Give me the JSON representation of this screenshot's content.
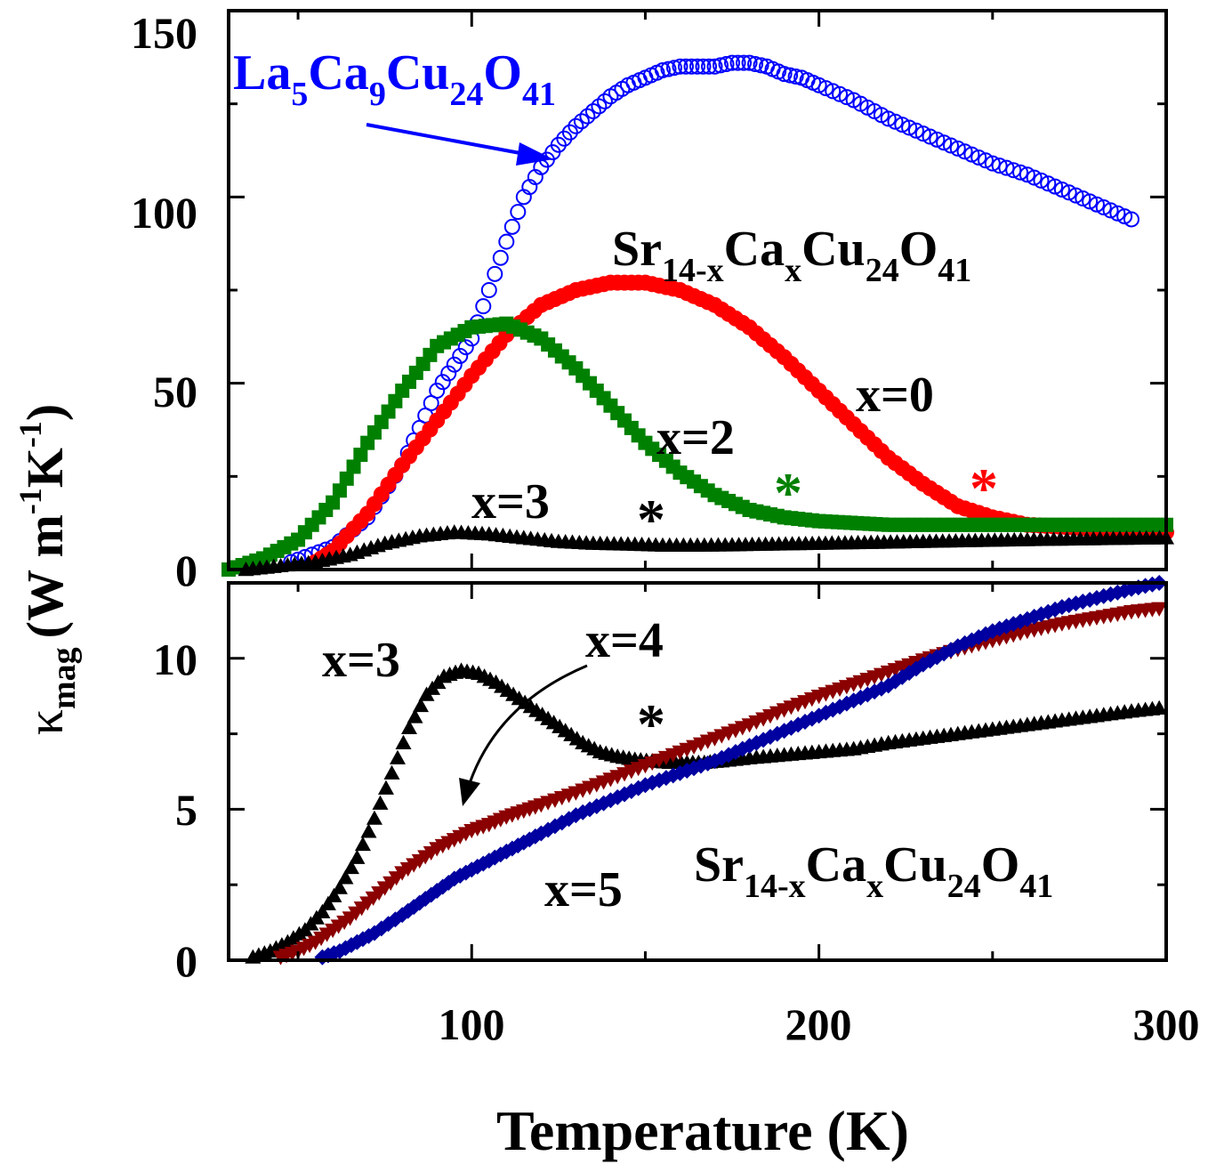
{
  "chart_data": [
    {
      "type": "scatter",
      "panel": "top",
      "xlim": [
        30,
        300
      ],
      "ylim": [
        0,
        150
      ],
      "yticks": [
        "0",
        "50",
        "100",
        "150"
      ],
      "ylabel": "κ_mag (W m⁻¹K⁻¹)",
      "formula": "Sr14-xCaxCu24O41",
      "series": [
        {
          "name": "La5Ca9Cu24O41",
          "color": "#0000ff",
          "marker": "open-circle",
          "x": [
            48,
            60,
            70,
            80,
            85,
            90,
            95,
            100,
            105,
            110,
            115,
            120,
            125,
            130,
            135,
            140,
            145,
            150,
            155,
            160,
            165,
            170,
            175,
            180,
            185,
            190,
            195,
            200,
            210,
            220,
            230,
            240,
            250,
            260,
            270,
            280,
            290
          ],
          "y": [
            2,
            6,
            14,
            28,
            38,
            48,
            55,
            62,
            75,
            88,
            100,
            108,
            114,
            119,
            123,
            127,
            130,
            132,
            134,
            135,
            135,
            135,
            136,
            136,
            135,
            133,
            132,
            130,
            126,
            121,
            117,
            113,
            109,
            106,
            102,
            98,
            94
          ]
        },
        {
          "name": "x=0",
          "color": "#ff0000",
          "marker": "filled-circle",
          "x": [
            55,
            60,
            70,
            80,
            90,
            100,
            110,
            120,
            130,
            140,
            150,
            160,
            170,
            180,
            190,
            200,
            210,
            220,
            230,
            240,
            250,
            260,
            280,
            300
          ],
          "y": [
            2,
            5,
            15,
            28,
            40,
            52,
            63,
            71,
            75,
            77,
            77,
            75,
            71,
            65,
            57,
            48,
            39,
            30,
            23,
            17,
            14,
            12,
            11,
            10
          ]
        },
        {
          "name": "x=2",
          "color": "#008000",
          "marker": "filled-square",
          "x": [
            30,
            40,
            50,
            60,
            70,
            80,
            90,
            100,
            110,
            120,
            130,
            140,
            150,
            160,
            170,
            180,
            190,
            200,
            220,
            250,
            300
          ],
          "y": [
            0,
            3,
            8,
            18,
            34,
            48,
            60,
            65,
            66,
            62,
            54,
            44,
            34,
            26,
            20,
            16,
            14,
            13,
            12,
            12,
            12
          ]
        },
        {
          "name": "x=3",
          "color": "#000000",
          "marker": "filled-triangle-up",
          "x": [
            35,
            45,
            55,
            65,
            75,
            85,
            95,
            105,
            115,
            125,
            135,
            145,
            155,
            165,
            175,
            200,
            230,
            260,
            300
          ],
          "y": [
            0,
            1,
            2,
            4,
            7,
            9,
            10,
            9.5,
            8.5,
            7.5,
            7,
            6.8,
            6.5,
            6.5,
            6.6,
            7,
            7.5,
            8,
            8.5
          ]
        }
      ],
      "annotations": [
        "x=0",
        "x=2",
        "x=3",
        "*",
        "*",
        "*"
      ]
    },
    {
      "type": "scatter",
      "panel": "bottom",
      "xlim": [
        30,
        300
      ],
      "ylim": [
        0,
        12.5
      ],
      "xticks": [
        "100",
        "200",
        "300"
      ],
      "yticks": [
        "0",
        "5",
        "10"
      ],
      "xlabel": "Temperature (K)",
      "formula": "Sr14-xCaxCu24O41",
      "series": [
        {
          "name": "x=3",
          "color": "#000000",
          "marker": "filled-triangle-up",
          "x": [
            37,
            42,
            47,
            52,
            57,
            62,
            67,
            72,
            77,
            82,
            87,
            92,
            97,
            102,
            107,
            112,
            117,
            122,
            127,
            132,
            137,
            142,
            147,
            152,
            157,
            162,
            167,
            172,
            180,
            190,
            200,
            210,
            220,
            230,
            240,
            250,
            260,
            270,
            280,
            290,
            298
          ],
          "y": [
            0.1,
            0.3,
            0.6,
            1.0,
            1.6,
            2.4,
            3.4,
            4.7,
            6.2,
            7.7,
            8.8,
            9.4,
            9.6,
            9.5,
            9.2,
            8.8,
            8.4,
            8.0,
            7.6,
            7.2,
            6.9,
            6.75,
            6.65,
            6.6,
            6.55,
            6.55,
            6.55,
            6.6,
            6.7,
            6.8,
            6.9,
            7.0,
            7.2,
            7.35,
            7.5,
            7.65,
            7.8,
            7.95,
            8.1,
            8.25,
            8.35
          ]
        },
        {
          "name": "x=4",
          "color": "#8b0000",
          "marker": "filled-triangle-down",
          "x": [
            45,
            50,
            55,
            60,
            65,
            70,
            75,
            80,
            85,
            90,
            95,
            100,
            105,
            110,
            115,
            120,
            130,
            140,
            150,
            160,
            170,
            180,
            190,
            200,
            210,
            220,
            230,
            240,
            250,
            260,
            270,
            280,
            290,
            298
          ],
          "y": [
            0.1,
            0.3,
            0.6,
            1.0,
            1.4,
            1.9,
            2.4,
            2.9,
            3.3,
            3.7,
            4.0,
            4.3,
            4.5,
            4.75,
            4.95,
            5.15,
            5.55,
            6.0,
            6.45,
            6.9,
            7.35,
            7.8,
            8.3,
            8.75,
            9.15,
            9.55,
            9.95,
            10.3,
            10.6,
            10.9,
            11.15,
            11.35,
            11.55,
            11.65
          ]
        },
        {
          "name": "x=5",
          "color": "#0000a0",
          "marker": "filled-diamond",
          "x": [
            57,
            62,
            67,
            72,
            80,
            85,
            90,
            95,
            100,
            105,
            110,
            115,
            120,
            130,
            140,
            150,
            160,
            170,
            180,
            190,
            200,
            210,
            220,
            230,
            240,
            250,
            260,
            270,
            280,
            290,
            298
          ],
          "y": [
            0.1,
            0.3,
            0.6,
            0.9,
            1.5,
            1.9,
            2.3,
            2.7,
            3.0,
            3.3,
            3.6,
            3.9,
            4.2,
            4.8,
            5.3,
            5.8,
            6.2,
            6.6,
            7.1,
            7.6,
            8.1,
            8.6,
            9.1,
            9.8,
            10.4,
            10.9,
            11.3,
            11.7,
            12.0,
            12.3,
            12.5
          ]
        }
      ],
      "annotations": [
        "x=3",
        "x=4",
        "x=5",
        "*"
      ]
    }
  ],
  "labels": {
    "la_formula": {
      "base": "La",
      "s1": "5",
      "m1": "Ca",
      "s2": "9",
      "m2": "Cu",
      "s3": "24",
      "m3": "O",
      "s4": "41"
    },
    "sr_formula": {
      "base": "Sr",
      "s1": "14-x",
      "m1": "Ca",
      "s2": "x",
      "m2": "Cu",
      "s3": "24",
      "m3": "O",
      "s4": "41"
    },
    "x0": "x=0",
    "x2": "x=2",
    "x3": "x=3",
    "x4": "x=4",
    "x5": "x=5",
    "star": "*",
    "ylabel": {
      "kappa": "κ",
      "sub": "mag",
      "unit_open": "(W m",
      "exp1": "-1",
      "unit_k": "K",
      "exp2": "-1",
      "unit_close": ")"
    },
    "xlabel": "Temperature (K)"
  },
  "colors": {
    "la": "#0000ff",
    "x0": "#ff0000",
    "x2": "#008000",
    "x3": "#000000",
    "x4": "#8b0000",
    "x5": "#0000a0"
  }
}
